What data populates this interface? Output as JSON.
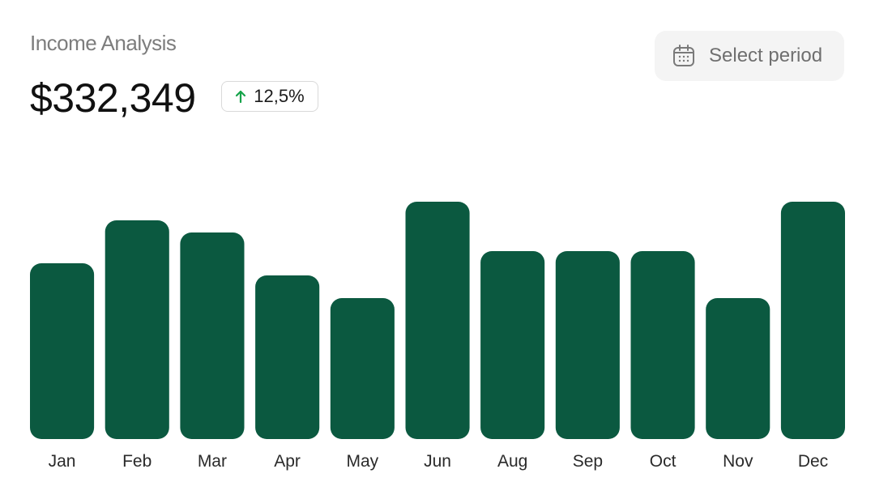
{
  "header": {
    "title": "Income Analysis",
    "amount": "$332,349",
    "change_badge": {
      "text": "12,5%",
      "icon": "arrow-up-icon",
      "color": "#16a34a"
    },
    "period_button": {
      "label": "Select period",
      "icon": "calendar-icon"
    }
  },
  "colors": {
    "bar": "#0b5940",
    "title": "#7d7d7d",
    "badge_arrow": "#16a34a"
  },
  "chart_data": {
    "type": "bar",
    "title": "",
    "xlabel": "",
    "ylabel": "",
    "grid": false,
    "categories": [
      "Jan",
      "Feb",
      "Mar",
      "Apr",
      "May",
      "Jun",
      "Aug",
      "Sep",
      "Oct",
      "Nov",
      "Dec"
    ],
    "values": [
      217,
      270,
      255,
      202,
      174,
      293,
      232,
      232,
      232,
      174,
      293
    ],
    "ylim": [
      0,
      300
    ]
  }
}
